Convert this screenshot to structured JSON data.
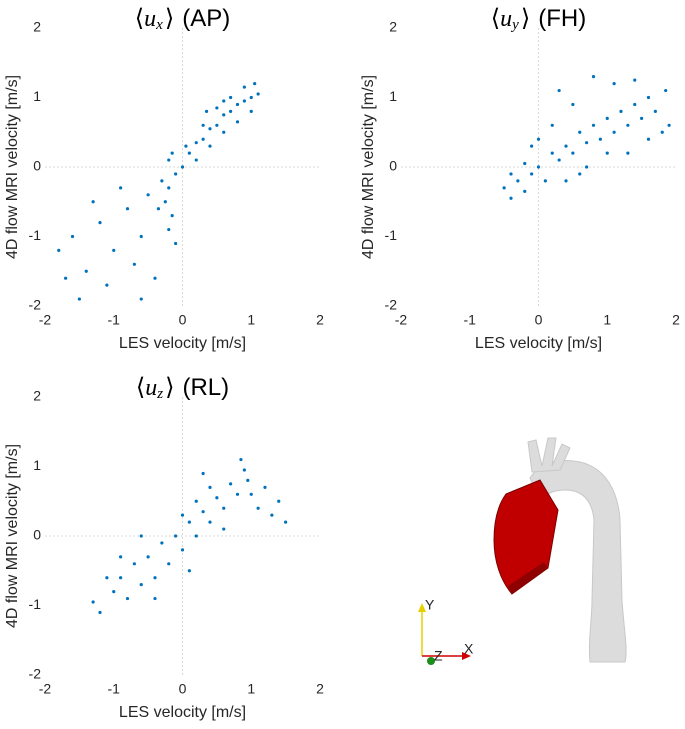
{
  "chart_data": [
    {
      "type": "scatter",
      "title": {
        "open": "⟨",
        "var": "u",
        "sub": "x",
        "close": "⟩",
        "label": "(AP)"
      },
      "x_label": "LES velocity [m/s]",
      "y_label": "4D flow MRI velocity [m/s]",
      "color": "#0072bd",
      "xlim": [
        -2,
        2
      ],
      "ylim": [
        -2,
        2
      ],
      "xticks": [
        -2,
        -1,
        0,
        1,
        2
      ],
      "yticks": [
        -2,
        -1,
        0,
        1,
        2
      ],
      "zero_lines": true,
      "x": [
        0.1,
        0.2,
        0.3,
        0.4,
        0.5,
        0.6,
        0.7,
        0.8,
        0.9,
        1.0,
        1.1,
        0.3,
        0.5,
        0.7,
        0.9,
        0.4,
        0.6,
        0.8,
        1.0,
        0.2,
        0.0,
        -0.1,
        0.05,
        0.6,
        1.05,
        0.35,
        -0.2,
        -0.25,
        -0.15,
        -0.2,
        -0.1,
        -0.3,
        -0.2,
        -0.15,
        -0.35,
        -1.6,
        -1.8,
        -1.4,
        -1.2,
        -1.0,
        -0.8,
        -0.6,
        -1.5,
        -1.1,
        -0.7,
        -0.5,
        -0.9,
        -1.3,
        -0.4,
        -1.7,
        -0.6
      ],
      "values": [
        0.2,
        0.35,
        0.4,
        0.55,
        0.6,
        0.75,
        0.8,
        0.9,
        0.95,
        1.0,
        1.05,
        0.6,
        0.85,
        1.0,
        1.15,
        0.3,
        0.5,
        0.65,
        0.8,
        0.1,
        0.0,
        -0.1,
        0.3,
        0.95,
        1.2,
        0.8,
        -0.3,
        -0.5,
        -0.7,
        -0.9,
        -1.1,
        -0.2,
        0.1,
        0.2,
        -0.6,
        -1.0,
        -1.2,
        -1.5,
        -0.8,
        -1.2,
        -0.6,
        -1.0,
        -1.9,
        -1.7,
        -1.4,
        -0.4,
        -0.3,
        -0.5,
        -1.6,
        -1.6,
        -1.9
      ]
    },
    {
      "type": "scatter",
      "title": {
        "open": "⟨",
        "var": "u",
        "sub": "y",
        "close": "⟩",
        "label": "(FH)"
      },
      "x_label": "LES velocity [m/s]",
      "y_label": "4D flow MRI velocity [m/s]",
      "color": "#0072bd",
      "xlim": [
        -2,
        2
      ],
      "ylim": [
        -2,
        2
      ],
      "xticks": [
        -2,
        -1,
        0,
        1,
        2
      ],
      "yticks": [
        -2,
        -1,
        0,
        1,
        2
      ],
      "zero_lines": true,
      "x": [
        -0.5,
        -0.4,
        -0.3,
        -0.2,
        -0.1,
        0,
        -0.4,
        -0.2,
        0.1,
        0.2,
        0.3,
        0.4,
        0.5,
        0.6,
        0.7,
        0.8,
        0.9,
        1.0,
        1.1,
        1.2,
        1.3,
        1.4,
        1.5,
        1.6,
        1.7,
        1.8,
        1.85,
        0.5,
        0.3,
        0.8,
        1.1,
        0.2,
        0.4,
        0.7,
        1.0,
        1.3,
        1.6,
        0.0,
        -0.1,
        0.6,
        1.9,
        1.4
      ],
      "values": [
        -0.3,
        -0.1,
        -0.2,
        -0.35,
        -0.1,
        0,
        -0.45,
        0.05,
        -0.2,
        0.2,
        0.1,
        0.3,
        0.2,
        0.5,
        0.35,
        0.6,
        0.4,
        0.7,
        0.5,
        0.8,
        0.6,
        0.9,
        0.7,
        1.0,
        0.8,
        0.5,
        1.1,
        0.9,
        1.1,
        1.3,
        1.2,
        0.6,
        -0.2,
        0,
        0.2,
        0.2,
        0.4,
        0.4,
        0.3,
        -0.1,
        0.6,
        1.25
      ]
    },
    {
      "type": "scatter",
      "title": {
        "open": "⟨",
        "var": "u",
        "sub": "z",
        "close": "⟩",
        "label": "(RL)"
      },
      "x_label": "LES velocity [m/s]",
      "y_label": "4D flow MRI velocity [m/s]",
      "color": "#0072bd",
      "xlim": [
        -2,
        2
      ],
      "ylim": [
        -2,
        2
      ],
      "xticks": [
        -2,
        -1,
        0,
        1,
        2
      ],
      "yticks": [
        -2,
        -1,
        0,
        1,
        2
      ],
      "zero_lines": true,
      "x": [
        -1.3,
        -1.2,
        -1.0,
        -0.9,
        -0.8,
        -0.7,
        -0.6,
        -0.5,
        -0.4,
        -0.3,
        -0.2,
        -0.1,
        0.0,
        0.1,
        0.2,
        0.3,
        0.4,
        0.5,
        0.6,
        0.7,
        0.8,
        0.9,
        0.95,
        1.0,
        1.1,
        1.2,
        1.3,
        1.5,
        0.85,
        0.4,
        0.2,
        0,
        -0.4,
        -0.6,
        -0.9,
        0.6,
        1.4,
        -1.1,
        0.1,
        0.3
      ],
      "values": [
        -0.95,
        -1.1,
        -0.8,
        -0.6,
        -0.9,
        -0.4,
        -0.7,
        -0.3,
        -0.6,
        -0.1,
        -0.4,
        0.0,
        -0.2,
        0.2,
        0.0,
        0.35,
        0.2,
        0.55,
        0.4,
        0.75,
        0.6,
        0.95,
        0.8,
        0.6,
        0.4,
        0.7,
        0.3,
        0.2,
        1.1,
        0.7,
        0.5,
        0.3,
        -0.9,
        0.0,
        -0.3,
        0.1,
        0.5,
        -0.6,
        -0.5,
        0.9
      ]
    }
  ],
  "orientation_axes": {
    "y": "Y",
    "z": "Z",
    "x": "X"
  }
}
